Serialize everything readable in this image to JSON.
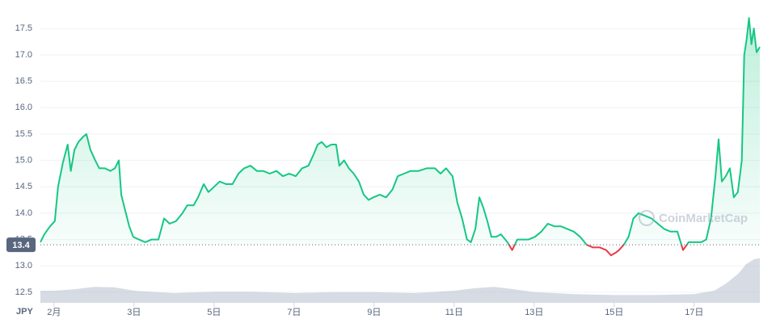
{
  "chart_data": {
    "type": "line",
    "currency": "JPY",
    "watermark": "CoinMarketCap",
    "x": [
      0.66,
      0.76,
      0.9,
      1.02,
      1.1,
      1.22,
      1.34,
      1.42,
      1.51,
      1.61,
      1.73,
      1.81,
      1.91,
      2.03,
      2.13,
      2.27,
      2.41,
      2.52,
      2.62,
      2.68,
      2.78,
      2.88,
      2.98,
      3.12,
      3.28,
      3.44,
      3.61,
      3.75,
      3.89,
      4.05,
      4.21,
      4.33,
      4.49,
      4.6,
      4.74,
      4.86,
      5.0,
      5.14,
      5.3,
      5.46,
      5.61,
      5.75,
      5.91,
      6.07,
      6.23,
      6.39,
      6.56,
      6.72,
      6.88,
      7.04,
      7.2,
      7.36,
      7.48,
      7.59,
      7.69,
      7.81,
      7.93,
      8.05,
      8.13,
      8.25,
      8.37,
      8.49,
      8.62,
      8.74,
      8.86,
      8.98,
      9.14,
      9.3,
      9.46,
      9.59,
      9.75,
      9.91,
      10.11,
      10.31,
      10.52,
      10.66,
      10.8,
      10.96,
      11.08,
      11.2,
      11.32,
      11.42,
      11.53,
      11.63,
      11.73,
      11.83,
      11.93,
      12.05,
      12.17,
      12.33,
      12.45,
      12.58,
      12.7,
      12.86,
      13.02,
      13.18,
      13.34,
      13.51,
      13.67,
      13.83,
      13.99,
      14.15,
      14.31,
      14.47,
      14.64,
      14.8,
      14.92,
      15.04,
      15.12,
      15.24,
      15.36,
      15.48,
      15.61,
      15.77,
      15.93,
      16.09,
      16.25,
      16.41,
      16.58,
      16.72,
      16.86,
      17.02,
      17.18,
      17.3,
      17.42,
      17.53,
      17.61,
      17.69,
      17.79,
      17.89,
      17.99,
      18.09,
      18.19,
      18.25,
      18.31,
      18.37,
      18.43,
      18.49,
      18.56,
      18.64
    ],
    "series": [
      {
        "color": "#16c784",
        "below_color": "#ea3943",
        "values": [
          13.45,
          13.6,
          13.75,
          13.85,
          14.5,
          14.95,
          15.3,
          14.8,
          15.2,
          15.35,
          15.45,
          15.5,
          15.2,
          15.0,
          14.85,
          14.85,
          14.8,
          14.85,
          15.0,
          14.35,
          14.05,
          13.75,
          13.55,
          13.5,
          13.45,
          13.5,
          13.5,
          13.9,
          13.8,
          13.85,
          14.0,
          14.15,
          14.15,
          14.3,
          14.55,
          14.4,
          14.5,
          14.6,
          14.55,
          14.55,
          14.75,
          14.85,
          14.9,
          14.8,
          14.8,
          14.75,
          14.8,
          14.7,
          14.75,
          14.7,
          14.85,
          14.9,
          15.1,
          15.3,
          15.35,
          15.25,
          15.3,
          15.3,
          14.9,
          15.0,
          14.85,
          14.75,
          14.6,
          14.35,
          14.25,
          14.3,
          14.35,
          14.3,
          14.45,
          14.7,
          14.75,
          14.8,
          14.8,
          14.85,
          14.85,
          14.75,
          14.85,
          14.7,
          14.2,
          13.9,
          13.5,
          13.45,
          13.7,
          14.3,
          14.1,
          13.85,
          13.55,
          13.55,
          13.6,
          13.45,
          13.3,
          13.5,
          13.5,
          13.5,
          13.55,
          13.65,
          13.8,
          13.75,
          13.75,
          13.7,
          13.65,
          13.55,
          13.4,
          13.35,
          13.35,
          13.3,
          13.2,
          13.25,
          13.3,
          13.4,
          13.55,
          13.9,
          14.0,
          13.95,
          13.9,
          13.8,
          13.7,
          13.65,
          13.65,
          13.3,
          13.45,
          13.45,
          13.45,
          13.5,
          13.9,
          14.7,
          15.4,
          14.6,
          14.7,
          14.85,
          14.3,
          14.4,
          15.0,
          17.0,
          17.3,
          17.7,
          17.2,
          17.5,
          17.05,
          17.15
        ]
      }
    ],
    "baseline": 13.4,
    "volume": {
      "color": "#c5ccd9",
      "axis": "y2",
      "x": [
        0.66,
        1.0,
        1.5,
        2.0,
        2.5,
        3.0,
        4,
        5,
        6,
        7,
        8,
        9,
        10,
        11,
        11.5,
        12,
        12.5,
        13,
        14,
        15,
        16,
        17,
        17.5,
        17.8,
        18.1,
        18.3,
        18.5,
        18.64
      ],
      "values": [
        25,
        25,
        28,
        33,
        32,
        25,
        20,
        23,
        23,
        20,
        22,
        22,
        20,
        25,
        30,
        33,
        28,
        22,
        18,
        16,
        16,
        18,
        25,
        40,
        60,
        80,
        90,
        92
      ]
    },
    "y2lim": [
      0,
      100
    ],
    "xlim": [
      0.66,
      18.64
    ],
    "xticks": [
      {
        "value": 1,
        "label": "2月"
      },
      {
        "value": 3,
        "label": "3日"
      },
      {
        "value": 5,
        "label": "5日"
      },
      {
        "value": 7,
        "label": "7日"
      },
      {
        "value": 9,
        "label": "9日"
      },
      {
        "value": 11,
        "label": "11日"
      },
      {
        "value": 13,
        "label": "13日"
      },
      {
        "value": 15,
        "label": "15日"
      },
      {
        "value": 17,
        "label": "17日"
      }
    ],
    "ylim": [
      12.3,
      17.75
    ],
    "yticks": [
      12.5,
      {
        "value": 13,
        "label": "13.0"
      },
      13.5,
      {
        "value": 14,
        "label": "14.0"
      },
      14.5,
      {
        "value": 15,
        "label": "15.0"
      },
      15.5,
      {
        "value": 16,
        "label": "16.0"
      },
      16.5,
      {
        "value": 17,
        "label": "17.0"
      },
      17.5
    ],
    "grid": true
  }
}
